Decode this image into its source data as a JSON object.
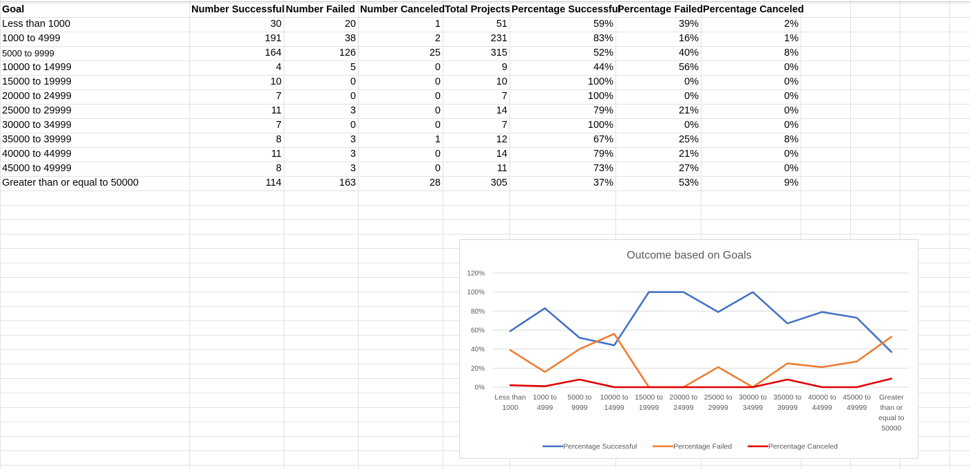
{
  "table": {
    "headers": [
      "Goal",
      "Number Successful",
      "Number Failed",
      "Number Canceled",
      "Total Projects",
      "Percentage Successful",
      "Percentage Failed",
      "Percentage Canceled"
    ],
    "rows": [
      [
        "Less than 1000",
        "30",
        "20",
        "1",
        "51",
        "59%",
        "39%",
        "2%"
      ],
      [
        "1000 to 4999",
        "191",
        "38",
        "2",
        "231",
        "83%",
        "16%",
        "1%"
      ],
      [
        "5000 to 9999",
        "164",
        "126",
        "25",
        "315",
        "52%",
        "40%",
        "8%"
      ],
      [
        "10000 to 14999",
        "4",
        "5",
        "0",
        "9",
        "44%",
        "56%",
        "0%"
      ],
      [
        "15000 to 19999",
        "10",
        "0",
        "0",
        "10",
        "100%",
        "0%",
        "0%"
      ],
      [
        "20000 to 24999",
        "7",
        "0",
        "0",
        "7",
        "100%",
        "0%",
        "0%"
      ],
      [
        "25000 to 29999",
        "11",
        "3",
        "0",
        "14",
        "79%",
        "21%",
        "0%"
      ],
      [
        "30000 to 34999",
        "7",
        "0",
        "0",
        "7",
        "100%",
        "0%",
        "0%"
      ],
      [
        "35000 to 39999",
        "8",
        "3",
        "1",
        "12",
        "67%",
        "25%",
        "8%"
      ],
      [
        "40000 to 44999",
        "11",
        "3",
        "0",
        "14",
        "79%",
        "21%",
        "0%"
      ],
      [
        "45000 to 49999",
        "8",
        "3",
        "0",
        "11",
        "73%",
        "27%",
        "0%"
      ],
      [
        "Greater than or equal to 50000",
        "114",
        "163",
        "28",
        "305",
        "37%",
        "53%",
        "9%"
      ]
    ]
  },
  "chart_data": {
    "type": "line",
    "title": "Outcome based on Goals",
    "xlabel": "",
    "ylabel": "",
    "ylim": [
      0,
      120
    ],
    "y_ticks": [
      "0%",
      "20%",
      "40%",
      "60%",
      "80%",
      "100%",
      "120%"
    ],
    "grid": true,
    "legend_position": "bottom",
    "categories": [
      [
        "Less than",
        "1000"
      ],
      [
        "1000 to",
        "4999"
      ],
      [
        "5000 to",
        "9999"
      ],
      [
        "10000 to",
        "14999"
      ],
      [
        "15000 to",
        "19999"
      ],
      [
        "20000 to",
        "24999"
      ],
      [
        "25000 to",
        "29999"
      ],
      [
        "30000 to",
        "34999"
      ],
      [
        "35000 to",
        "39999"
      ],
      [
        "40000 to",
        "44999"
      ],
      [
        "45000 to",
        "49999"
      ],
      [
        "Greater",
        "than or",
        "equal to",
        "50000"
      ]
    ],
    "series": [
      {
        "name": "Percentage Successful",
        "color": "#4472c4",
        "values": [
          59,
          83,
          52,
          44,
          100,
          100,
          79,
          100,
          67,
          79,
          73,
          37
        ]
      },
      {
        "name": "Percentage Failed",
        "color": "#ed7d31",
        "values": [
          39,
          16,
          40,
          56,
          0,
          0,
          21,
          0,
          25,
          21,
          27,
          53
        ]
      },
      {
        "name": "Percentage Canceled",
        "color": "#e00000",
        "values": [
          2,
          1,
          8,
          0,
          0,
          0,
          0,
          0,
          8,
          0,
          0,
          9
        ]
      }
    ]
  }
}
